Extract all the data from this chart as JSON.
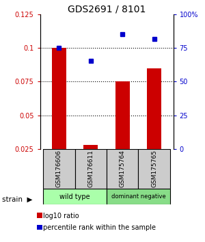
{
  "title": "GDS2691 / 8101",
  "samples": [
    "GSM176606",
    "GSM176611",
    "GSM175764",
    "GSM175765"
  ],
  "bar_values": [
    0.1,
    0.028,
    0.075,
    0.085
  ],
  "scatter_values": [
    0.75,
    0.655,
    0.855,
    0.82
  ],
  "bar_color": "#cc0000",
  "scatter_color": "#0000cc",
  "left_ylim": [
    0.025,
    0.125
  ],
  "left_yticks": [
    0.025,
    0.05,
    0.075,
    0.1,
    0.125
  ],
  "left_yticklabels": [
    "0.025",
    "0.05",
    "0.075",
    "0.1",
    "0.125"
  ],
  "right_ylim": [
    0.0,
    1.0
  ],
  "right_yticks": [
    0.0,
    0.25,
    0.5,
    0.75,
    1.0
  ],
  "right_yticklabels": [
    "0",
    "25",
    "50",
    "75",
    "100%"
  ],
  "grid_lines": [
    0.05,
    0.075,
    0.1
  ],
  "group_ranges": [
    [
      1,
      2,
      "wild type",
      "#aaffaa"
    ],
    [
      3,
      4,
      "dominant negative",
      "#88dd88"
    ]
  ],
  "legend_red_label": "log10 ratio",
  "legend_blue_label": "percentile rank within the sample",
  "gray_box_color": "#cccccc",
  "title_fontsize": 10
}
